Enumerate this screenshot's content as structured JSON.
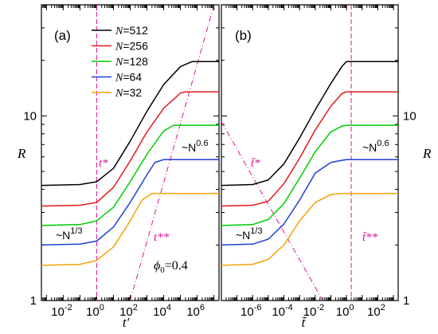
{
  "chart_data": [
    {
      "type": "line",
      "panel": "(a)",
      "xlabel": "t'",
      "ylabel": "R",
      "xscale": "log",
      "yscale": "log",
      "xlim": [
        0.0005,
        20000000
      ],
      "ylim": [
        1,
        40
      ],
      "xticks": [
        0.01,
        1,
        100,
        10000,
        1000000
      ],
      "xtick_labels": [
        "10",
        "10",
        "10",
        "10",
        "10"
      ],
      "xtick_exps": [
        "-2",
        "0",
        "2",
        "4",
        "6"
      ],
      "yticks": [
        1,
        10
      ],
      "ytick_labels": [
        "1",
        "10"
      ],
      "series": [
        {
          "name": "N=512",
          "color": "#000000",
          "plateau_low": 4.2,
          "plateau_high": 19.7,
          "x": [
            0.0005,
            0.1,
            1,
            10,
            100,
            1000,
            10000,
            100000,
            500000,
            1000000,
            20000000
          ],
          "y": [
            4.2,
            4.25,
            4.4,
            5.2,
            7.3,
            10.6,
            14.8,
            18.5,
            19.7,
            19.7,
            19.7
          ]
        },
        {
          "name": "N=256",
          "color": "#e31a1c",
          "plateau_low": 3.25,
          "plateau_high": 13.5,
          "x": [
            0.0005,
            0.1,
            1,
            10,
            100,
            1000,
            10000,
            100000,
            200000,
            1000000,
            20000000
          ],
          "y": [
            3.25,
            3.28,
            3.4,
            4.1,
            5.7,
            8.2,
            11.0,
            13.3,
            13.5,
            13.5,
            13.5
          ]
        },
        {
          "name": "N=128",
          "color": "#00cc00",
          "plateau_low": 2.55,
          "plateau_high": 8.9,
          "x": [
            0.0005,
            0.1,
            1,
            10,
            100,
            1000,
            10000,
            40000,
            100000,
            1000000,
            20000000
          ],
          "y": [
            2.55,
            2.58,
            2.7,
            3.2,
            4.4,
            6.2,
            8.3,
            8.9,
            8.9,
            8.9,
            8.9
          ]
        },
        {
          "name": "N=64",
          "color": "#1f3fd6",
          "plateau_low": 2.0,
          "plateau_high": 5.8,
          "x": [
            0.0005,
            0.1,
            1,
            10,
            100,
            1000,
            3000,
            10000,
            100000,
            1000000,
            20000000
          ],
          "y": [
            2.0,
            2.02,
            2.1,
            2.5,
            3.4,
            4.8,
            5.6,
            5.8,
            5.8,
            5.8,
            5.8
          ]
        },
        {
          "name": "N=32",
          "color": "#f5a20a",
          "plateau_low": 1.55,
          "plateau_high": 3.8,
          "x": [
            0.0005,
            0.1,
            1,
            10,
            100,
            500,
            2000,
            10000,
            100000,
            1000000,
            20000000
          ],
          "y": [
            1.55,
            1.57,
            1.65,
            1.95,
            2.7,
            3.5,
            3.8,
            3.8,
            3.8,
            3.8,
            3.8
          ]
        }
      ],
      "reference_lines": [
        {
          "label": "t*",
          "type": "vertical",
          "x": 1,
          "color": "#e0159a"
        },
        {
          "label": "t**",
          "type": "power",
          "x": [
            100,
            10000000
          ],
          "y": [
            1,
            39.8
          ],
          "color": "#e0159a"
        }
      ],
      "annotations": [
        {
          "text": "~N",
          "exp": "0.6"
        },
        {
          "text": "~N",
          "exp": "1/3"
        },
        {
          "text": "ϕ",
          "sub": "0",
          "suffix": "=0.4"
        }
      ]
    },
    {
      "type": "line",
      "panel": "(b)",
      "xlabel": "t̃",
      "ylabel": "R",
      "xscale": "log",
      "yscale": "log",
      "xlim": [
        1e-08,
        2000
      ],
      "ylim": [
        1,
        40
      ],
      "xticks": [
        1e-06,
        0.0001,
        0.01,
        1,
        100
      ],
      "xtick_labels": [
        "10",
        "10",
        "10",
        "10",
        "10"
      ],
      "xtick_exps": [
        "-6",
        "-4",
        "-2",
        "0",
        "2"
      ],
      "yticks": [
        1,
        10
      ],
      "ytick_labels": [
        "1",
        "10"
      ],
      "series": [
        {
          "name": "N=512",
          "color": "#000000",
          "x": [
            1e-08,
            1e-06,
            1e-05,
            0.0001,
            0.001,
            0.01,
            0.1,
            0.5,
            1,
            10,
            2000
          ],
          "y": [
            4.2,
            4.25,
            4.5,
            5.5,
            7.6,
            10.8,
            15.0,
            18.5,
            19.7,
            19.7,
            19.7
          ]
        },
        {
          "name": "N=256",
          "color": "#e31a1c",
          "x": [
            1e-08,
            1e-06,
            1e-05,
            0.0001,
            0.001,
            0.01,
            0.1,
            0.5,
            1,
            10,
            2000
          ],
          "y": [
            3.25,
            3.28,
            3.45,
            4.3,
            5.9,
            8.4,
            11.3,
            13.2,
            13.5,
            13.5,
            13.5
          ]
        },
        {
          "name": "N=128",
          "color": "#00cc00",
          "x": [
            1e-08,
            1e-06,
            1e-05,
            0.0001,
            0.001,
            0.01,
            0.1,
            0.5,
            1,
            10,
            2000
          ],
          "y": [
            2.55,
            2.58,
            2.75,
            3.35,
            4.6,
            6.4,
            8.2,
            8.8,
            8.9,
            8.9,
            8.9
          ]
        },
        {
          "name": "N=64",
          "color": "#1f3fd6",
          "x": [
            1e-08,
            1e-06,
            1e-05,
            0.0001,
            0.001,
            0.01,
            0.1,
            0.5,
            1,
            10,
            2000
          ],
          "y": [
            2.0,
            2.02,
            2.15,
            2.6,
            3.5,
            4.9,
            5.6,
            5.75,
            5.8,
            5.8,
            5.8
          ]
        },
        {
          "name": "N=32",
          "color": "#f5a20a",
          "x": [
            1e-08,
            1e-06,
            1e-05,
            0.0001,
            0.001,
            0.01,
            0.1,
            0.5,
            1,
            10,
            2000
          ],
          "y": [
            1.55,
            1.57,
            1.67,
            2.0,
            2.7,
            3.4,
            3.75,
            3.8,
            3.8,
            3.8,
            3.8
          ]
        }
      ],
      "reference_lines": [
        {
          "label": "t̃*",
          "type": "power",
          "x": [
            1e-08,
            0.03
          ],
          "y": [
            9.3,
            1
          ],
          "color": "#e0159a"
        },
        {
          "label": "t̃**",
          "type": "vertical",
          "x": 2,
          "color": "#e0159a"
        }
      ],
      "annotations": [
        {
          "text": "~N",
          "exp": "0.6"
        },
        {
          "text": "~N",
          "exp": "1/3"
        }
      ]
    }
  ],
  "legend": {
    "placement": "top-left of panel (a)",
    "entries": [
      {
        "var": "N",
        "value": "=512",
        "color": "#000000"
      },
      {
        "var": "N",
        "value": "=256",
        "color": "#e31a1c"
      },
      {
        "var": "N",
        "value": "=128",
        "color": "#00cc00"
      },
      {
        "var": "N",
        "value": "=64",
        "color": "#1f3fd6"
      },
      {
        "var": "N",
        "value": "=32",
        "color": "#f5a20a"
      }
    ]
  },
  "labels": {
    "panel_a": "(a)",
    "panel_b": "(b)",
    "t_star": "t*",
    "t_star_star": "t**",
    "tt_star": "t̃*",
    "tt_star_star": "t̃**",
    "n06_base": "~N",
    "n06_exp": "0.6",
    "n13_base": "~N",
    "n13_exp": "1/3",
    "phi": "ϕ",
    "phi_sub": "0",
    "phi_val": "=0.4",
    "ylabel_left": "R",
    "ylabel_right": "R",
    "xlabel_a": "t'",
    "xlabel_b": "t̃"
  }
}
